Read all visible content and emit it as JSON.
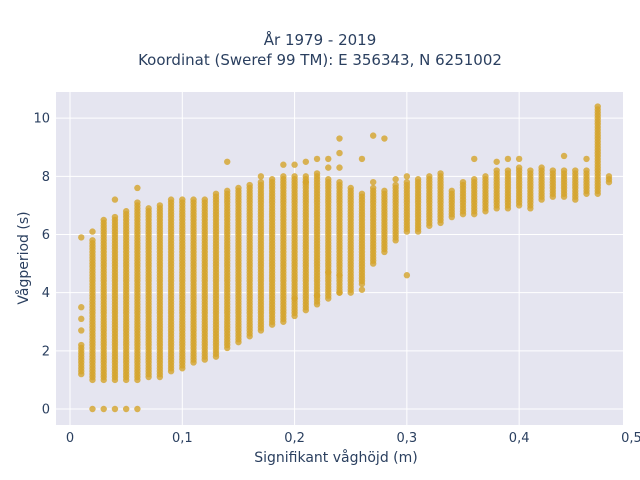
{
  "chart_data": {
    "type": "scatter",
    "title_lines": [
      "År 1979 - 2019",
      "Koordinat (Sweref 99 TM): E 356343, N 6251002"
    ],
    "xlabel": "Signifikant våghöjd (m)",
    "ylabel": "Vågperiod (s)",
    "xlim": [
      -0.0125,
      0.4925
    ],
    "ylim": [
      -0.55,
      10.9
    ],
    "x_ticks": [
      0,
      0.1,
      0.2,
      0.3,
      0.4,
      0.5
    ],
    "x_tick_labels": [
      "0",
      "0,1",
      "0,2",
      "0,3",
      "0,4",
      "0,5"
    ],
    "y_ticks": [
      0,
      2,
      4,
      6,
      8,
      10
    ],
    "y_tick_labels": [
      "0",
      "2",
      "4",
      "6",
      "8",
      "10"
    ],
    "grid": true,
    "background": "#e5e5f0",
    "marker_color": "#d4a42a",
    "step_x": 0.01,
    "columns": [
      {
        "x": 0.01,
        "lo": 1.2,
        "hi": 2.2,
        "extra": [
          5.9,
          3.5,
          3.1,
          2.7
        ]
      },
      {
        "x": 0.02,
        "lo": 1.0,
        "hi": 5.8,
        "extra": [
          6.1,
          0.0
        ]
      },
      {
        "x": 0.03,
        "lo": 1.0,
        "hi": 6.5,
        "extra": [
          0.0
        ]
      },
      {
        "x": 0.04,
        "lo": 1.0,
        "hi": 6.6,
        "extra": [
          7.2,
          0.0
        ]
      },
      {
        "x": 0.05,
        "lo": 1.0,
        "hi": 6.8,
        "extra": [
          0.0
        ]
      },
      {
        "x": 0.06,
        "lo": 1.0,
        "hi": 7.1,
        "extra": [
          7.6,
          0.0
        ]
      },
      {
        "x": 0.07,
        "lo": 1.1,
        "hi": 6.9,
        "extra": []
      },
      {
        "x": 0.08,
        "lo": 1.1,
        "hi": 7.0,
        "extra": []
      },
      {
        "x": 0.09,
        "lo": 1.3,
        "hi": 7.2,
        "extra": []
      },
      {
        "x": 0.1,
        "lo": 1.4,
        "hi": 7.2,
        "extra": []
      },
      {
        "x": 0.11,
        "lo": 1.6,
        "hi": 7.2,
        "extra": []
      },
      {
        "x": 0.12,
        "lo": 1.7,
        "hi": 7.2,
        "extra": []
      },
      {
        "x": 0.13,
        "lo": 1.8,
        "hi": 7.4,
        "extra": []
      },
      {
        "x": 0.14,
        "lo": 2.1,
        "hi": 7.5,
        "extra": [
          8.5
        ]
      },
      {
        "x": 0.15,
        "lo": 2.3,
        "hi": 7.5,
        "extra": [
          7.6
        ]
      },
      {
        "x": 0.16,
        "lo": 2.5,
        "hi": 7.6,
        "extra": [
          7.7
        ]
      },
      {
        "x": 0.17,
        "lo": 2.7,
        "hi": 7.8,
        "extra": [
          8.0
        ]
      },
      {
        "x": 0.18,
        "lo": 2.9,
        "hi": 7.9,
        "extra": []
      },
      {
        "x": 0.19,
        "lo": 3.0,
        "hi": 8.0,
        "extra": [
          8.4
        ]
      },
      {
        "x": 0.2,
        "lo": 3.2,
        "hi": 8.0,
        "extra": [
          8.4,
          3.8
        ]
      },
      {
        "x": 0.21,
        "lo": 3.4,
        "hi": 8.0,
        "extra": [
          8.5,
          7.8
        ]
      },
      {
        "x": 0.22,
        "lo": 3.6,
        "hi": 8.1,
        "extra": [
          8.6,
          3.9
        ]
      },
      {
        "x": 0.23,
        "lo": 3.8,
        "hi": 7.9,
        "extra": [
          8.6,
          8.3,
          4.7
        ]
      },
      {
        "x": 0.24,
        "lo": 4.0,
        "hi": 7.8,
        "extra": [
          9.3,
          8.8,
          8.3,
          4.6,
          4.0
        ]
      },
      {
        "x": 0.25,
        "lo": 4.1,
        "hi": 7.5,
        "extra": [
          7.6,
          4.0
        ]
      },
      {
        "x": 0.26,
        "lo": 4.3,
        "hi": 7.4,
        "extra": [
          8.6,
          4.1
        ]
      },
      {
        "x": 0.27,
        "lo": 5.0,
        "hi": 7.6,
        "extra": [
          9.4,
          7.8
        ]
      },
      {
        "x": 0.28,
        "lo": 5.4,
        "hi": 7.5,
        "extra": [
          9.3
        ]
      },
      {
        "x": 0.29,
        "lo": 5.8,
        "hi": 7.7,
        "extra": [
          7.9
        ]
      },
      {
        "x": 0.3,
        "lo": 6.1,
        "hi": 7.8,
        "extra": [
          4.6,
          8.0
        ]
      },
      {
        "x": 0.31,
        "lo": 6.1,
        "hi": 7.9,
        "extra": []
      },
      {
        "x": 0.32,
        "lo": 6.3,
        "hi": 8.0,
        "extra": []
      },
      {
        "x": 0.33,
        "lo": 6.4,
        "hi": 8.1,
        "extra": []
      },
      {
        "x": 0.34,
        "lo": 6.6,
        "hi": 7.5,
        "extra": []
      },
      {
        "x": 0.35,
        "lo": 6.7,
        "hi": 7.8,
        "extra": []
      },
      {
        "x": 0.36,
        "lo": 6.7,
        "hi": 7.9,
        "extra": [
          8.6
        ]
      },
      {
        "x": 0.37,
        "lo": 6.8,
        "hi": 8.0,
        "extra": []
      },
      {
        "x": 0.38,
        "lo": 6.9,
        "hi": 8.2,
        "extra": [
          8.5
        ]
      },
      {
        "x": 0.39,
        "lo": 6.9,
        "hi": 8.2,
        "extra": [
          8.6
        ]
      },
      {
        "x": 0.4,
        "lo": 7.0,
        "hi": 8.3,
        "extra": [
          8.6
        ]
      },
      {
        "x": 0.41,
        "lo": 6.9,
        "hi": 8.2,
        "extra": []
      },
      {
        "x": 0.42,
        "lo": 7.2,
        "hi": 8.3,
        "extra": []
      },
      {
        "x": 0.43,
        "lo": 7.3,
        "hi": 8.2,
        "extra": []
      },
      {
        "x": 0.44,
        "lo": 7.3,
        "hi": 8.2,
        "extra": [
          8.7
        ]
      },
      {
        "x": 0.45,
        "lo": 7.2,
        "hi": 8.2,
        "extra": []
      },
      {
        "x": 0.46,
        "lo": 7.4,
        "hi": 8.2,
        "extra": [
          8.6
        ]
      },
      {
        "x": 0.47,
        "lo": 7.4,
        "hi": 10.4,
        "extra": []
      },
      {
        "x": 0.48,
        "lo": 7.8,
        "hi": 8.0,
        "extra": []
      }
    ]
  }
}
